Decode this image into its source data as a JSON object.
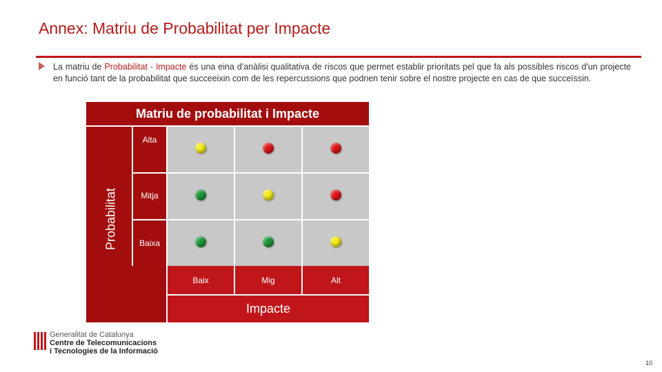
{
  "slide": {
    "title": "Annex: Matriu de Probabilitat per Impacte",
    "intro_before": "La matriu de ",
    "intro_highlight": "Probabilitat - Impacte",
    "intro_after": " és una eina d'anàlisi qualitativa de riscos que permet establir prioritats pel que fa als possibles riscos d'un projecte en funció tant de la probabilitat que succeeixin com de les repercussions que podrien tenir sobre el nostre projecte en cas de que succeïssin."
  },
  "matrix": {
    "title": "Matriu de probabilitat  i Impacte",
    "y_title": "Probabilitat",
    "x_title": "Impacte",
    "rows": [
      {
        "label": "Alta",
        "dots": [
          "yellow",
          "red",
          "red"
        ]
      },
      {
        "label": "Mitja",
        "dots": [
          "green",
          "yellow",
          "red"
        ]
      },
      {
        "label": "Baixa",
        "dots": [
          "green",
          "green",
          "yellow"
        ]
      }
    ],
    "columns": [
      "Baix",
      "Mig",
      "Alt"
    ],
    "colors": {
      "green": "#1f9a3a",
      "yellow": "#f4ec1a",
      "red": "#e0171b"
    }
  },
  "footer": {
    "org_line1": "Generalitat de Catalunya",
    "org_line2": "Centre de Telecomunicacions",
    "org_line3": "i Tecnologies de la Informació",
    "page_number": "10"
  }
}
